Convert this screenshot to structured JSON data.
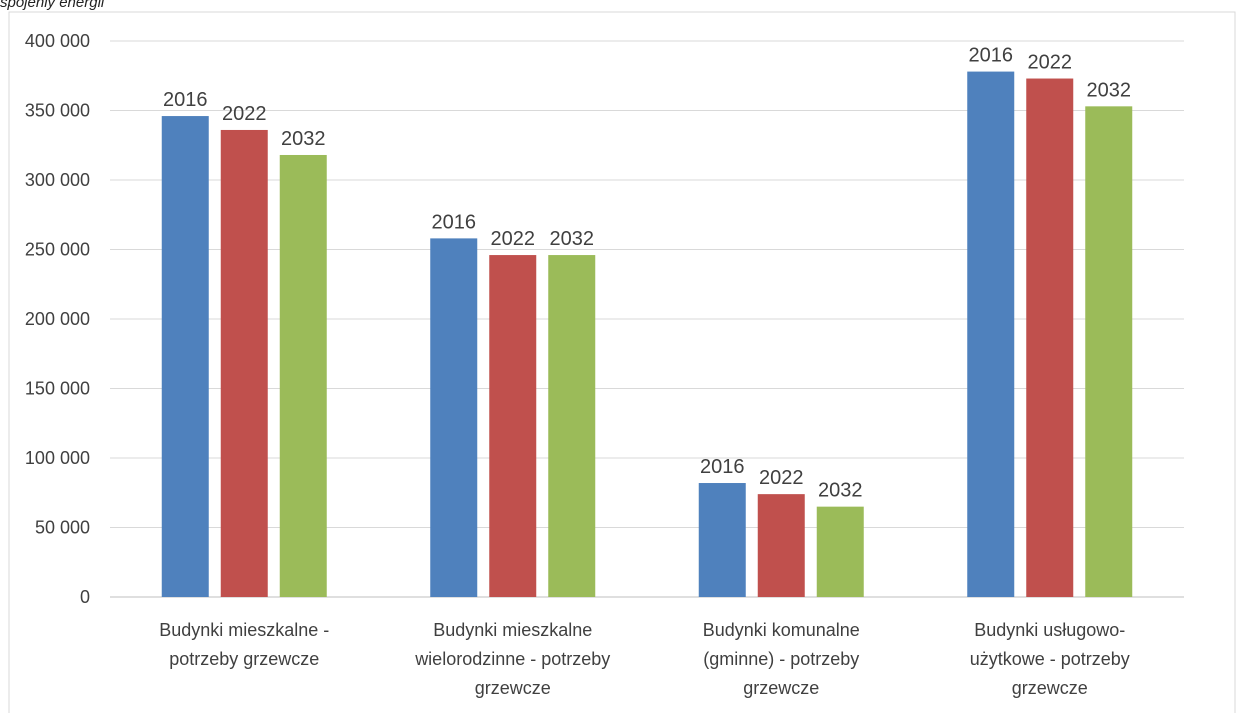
{
  "caption": "spojeniy energii",
  "chart_data": {
    "type": "bar",
    "categories": [
      [
        "Budynki mieszkalne -",
        "potrzeby grzewcze"
      ],
      [
        "Budynki mieszkalne",
        "wielorodzinne - potrzeby",
        "grzewcze"
      ],
      [
        "Budynki komunalne",
        "(gminne) - potrzeby",
        "grzewcze"
      ],
      [
        "Budynki usługowo-",
        "użytkowe - potrzeby",
        "grzewcze"
      ]
    ],
    "series": [
      {
        "name": "2016",
        "color": "#4F81BD",
        "values": [
          346000,
          258000,
          82000,
          378000
        ]
      },
      {
        "name": "2022",
        "color": "#C0504D",
        "values": [
          336000,
          246000,
          74000,
          373000
        ]
      },
      {
        "name": "2032",
        "color": "#9BBB59",
        "values": [
          318000,
          246000,
          65000,
          353000
        ]
      }
    ],
    "ylim": [
      0,
      400000
    ],
    "yticks": [
      0,
      50000,
      100000,
      150000,
      200000,
      250000,
      300000,
      350000,
      400000
    ],
    "ytick_labels": [
      "0",
      "50 000",
      "100 000",
      "150 000",
      "200 000",
      "250 000",
      "300 000",
      "350 000",
      "400 000"
    ],
    "data_labels": "series name above each bar",
    "grid": true,
    "legend": "none"
  }
}
